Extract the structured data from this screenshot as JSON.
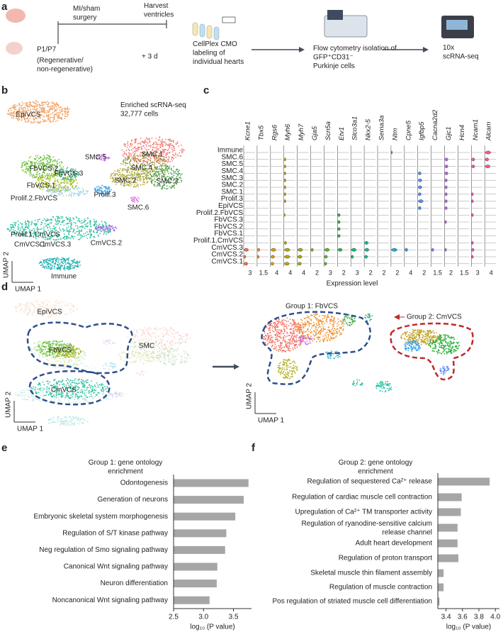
{
  "panel_labels": [
    "a",
    "b",
    "c",
    "d",
    "e",
    "f"
  ],
  "workflow": {
    "age": "P1/P7",
    "regeneration": "(Regenerative/\nnon-regenerative)",
    "surgery": "MI/sham\nsurgery",
    "harvest": "Harvest\nventricles",
    "interval": "+ 3 d",
    "labeling": "CellPlex CMO\nlabeling of\nindividual hearts",
    "sorting": "Flow cytometry isolation of\nGFP⁺CD31⁻\nPurkinje cells",
    "sequencing": "10x\nscRNA-seq"
  },
  "umap_b": {
    "title": "Enriched scRNA-seq\n32,777 cells",
    "clusters": [
      "EpiVCS",
      "SMC.5",
      "SMC.1",
      "FbVCS.2",
      "FbVCS.3",
      "SMC.4",
      "FbVCS.1",
      "SMC.2",
      "SMC.3",
      "Prolif.3",
      "Prolif.2.FbVCS",
      "SMC.6",
      "Prolif.1.CmVCS",
      "CmVCS.1",
      "CmVCS.3",
      "CmVCS.2",
      "Immune"
    ],
    "x_label": "UMAP 1",
    "y_label": "UMAP 2"
  },
  "violin": {
    "genes": [
      "Kcne1",
      "Tbx5",
      "Rgs6",
      "Myh6",
      "Myh7",
      "Gja5",
      "Scn5a",
      "Etv1",
      "Slco3a1",
      "Nkx2-5",
      "Sema3a",
      "Ntm",
      "Cpne5",
      "Igfbp5",
      "Cacna2d2",
      "Gjc1",
      "Hcn4",
      "Ncam1",
      "Alcam"
    ],
    "colors": [
      "#f4694f",
      "#f08a2c",
      "#d39a12",
      "#b9a40f",
      "#9ea712",
      "#85ad1c",
      "#5fb232",
      "#2fb44a",
      "#1db56c",
      "#14b78f",
      "#16b6b0",
      "#17aed0",
      "#2ea0e6",
      "#5b8cf0",
      "#8a78ee",
      "#b762e6",
      "#d856d2",
      "#ec55ae",
      "#f35d86"
    ],
    "clusters": [
      "Immune",
      "SMC.6",
      "SMC.5",
      "SMC.4",
      "SMC.3",
      "SMC.2",
      "SMC.1",
      "Prolif.3",
      "EpiVCS",
      "Prolif.2.FbVCS",
      "FbVCS.3",
      "FbVCS.2",
      "FbVCS.1",
      "Prolif.1.CmVCS",
      "CmVCS.3",
      "CmVCS.2",
      "CmVCS.1"
    ],
    "max_ticks": [
      3,
      1.5,
      4,
      4,
      4,
      2,
      3,
      2,
      3,
      2,
      2,
      2,
      4,
      2,
      1.5,
      2,
      1.5,
      3,
      4
    ],
    "x_label": "Expression level"
  },
  "umap_d": {
    "clusters": [
      "EpiVCS",
      "FbVCS",
      "SMC",
      "CmVCS"
    ],
    "group1": "Group 1: FbVCS",
    "group2": "Group 2: CmVCS",
    "x_label": "UMAP 1",
    "y_label": "UMAP 2",
    "x_label_right": "UMAP 1",
    "y_label_right": "UMAP 2"
  },
  "chart_data": [
    {
      "type": "bar",
      "orientation": "horizontal",
      "title": "Group 1: gene ontology\nenrichment",
      "title_color": "#3a62a7",
      "categories": [
        "Odontogenesis",
        "Generation of neurons",
        "Embryonic skeletal system morphogenesis",
        "Regulation of S/T kinase pathway",
        "Neg regulation of Smo signaling pathway",
        "Canonical Wnt signaling pathway",
        "Neuron differentiation",
        "Noncanonical Wnt signaling pathway"
      ],
      "values": [
        3.75,
        3.67,
        3.53,
        3.38,
        3.36,
        3.23,
        3.22,
        3.1
      ],
      "color": "#a6a6a6",
      "xlim": [
        2.5,
        3.8
      ],
      "xticks": [
        2.5,
        {
          "value": 3,
          "label": "3.0"
        },
        3.5
      ],
      "x_label": "log₁₀ (P value)"
    },
    {
      "type": "bar",
      "orientation": "horizontal",
      "title": "Group 2: gene ontology\nenrichment",
      "title_color": "#c0282c",
      "categories": [
        "Regulation of sequestered Ca²⁺ release",
        "Regulation of cardiac muscle cell contraction",
        "Upregulation of Ca²⁺ TM transporter activity",
        "Regulation of ryanodine-sensitive calcium\nrelease channel",
        "Adult heart development",
        "Regulation of proton transport",
        "Skeletal muscle thin filament assembly",
        "Regulation of muscle contraction",
        "Pos regulation of striated muscle cell differentiation"
      ],
      "values": [
        3.93,
        3.59,
        3.58,
        3.54,
        3.54,
        3.55,
        3.37,
        3.37,
        3.32
      ],
      "color": "#a6a6a6",
      "xlim": [
        3.3,
        4.05
      ],
      "xticks": [
        3.4,
        3.6,
        3.8,
        {
          "value": 4,
          "label": "4.0"
        }
      ],
      "x_label": "log₁₀ (P value)"
    }
  ]
}
